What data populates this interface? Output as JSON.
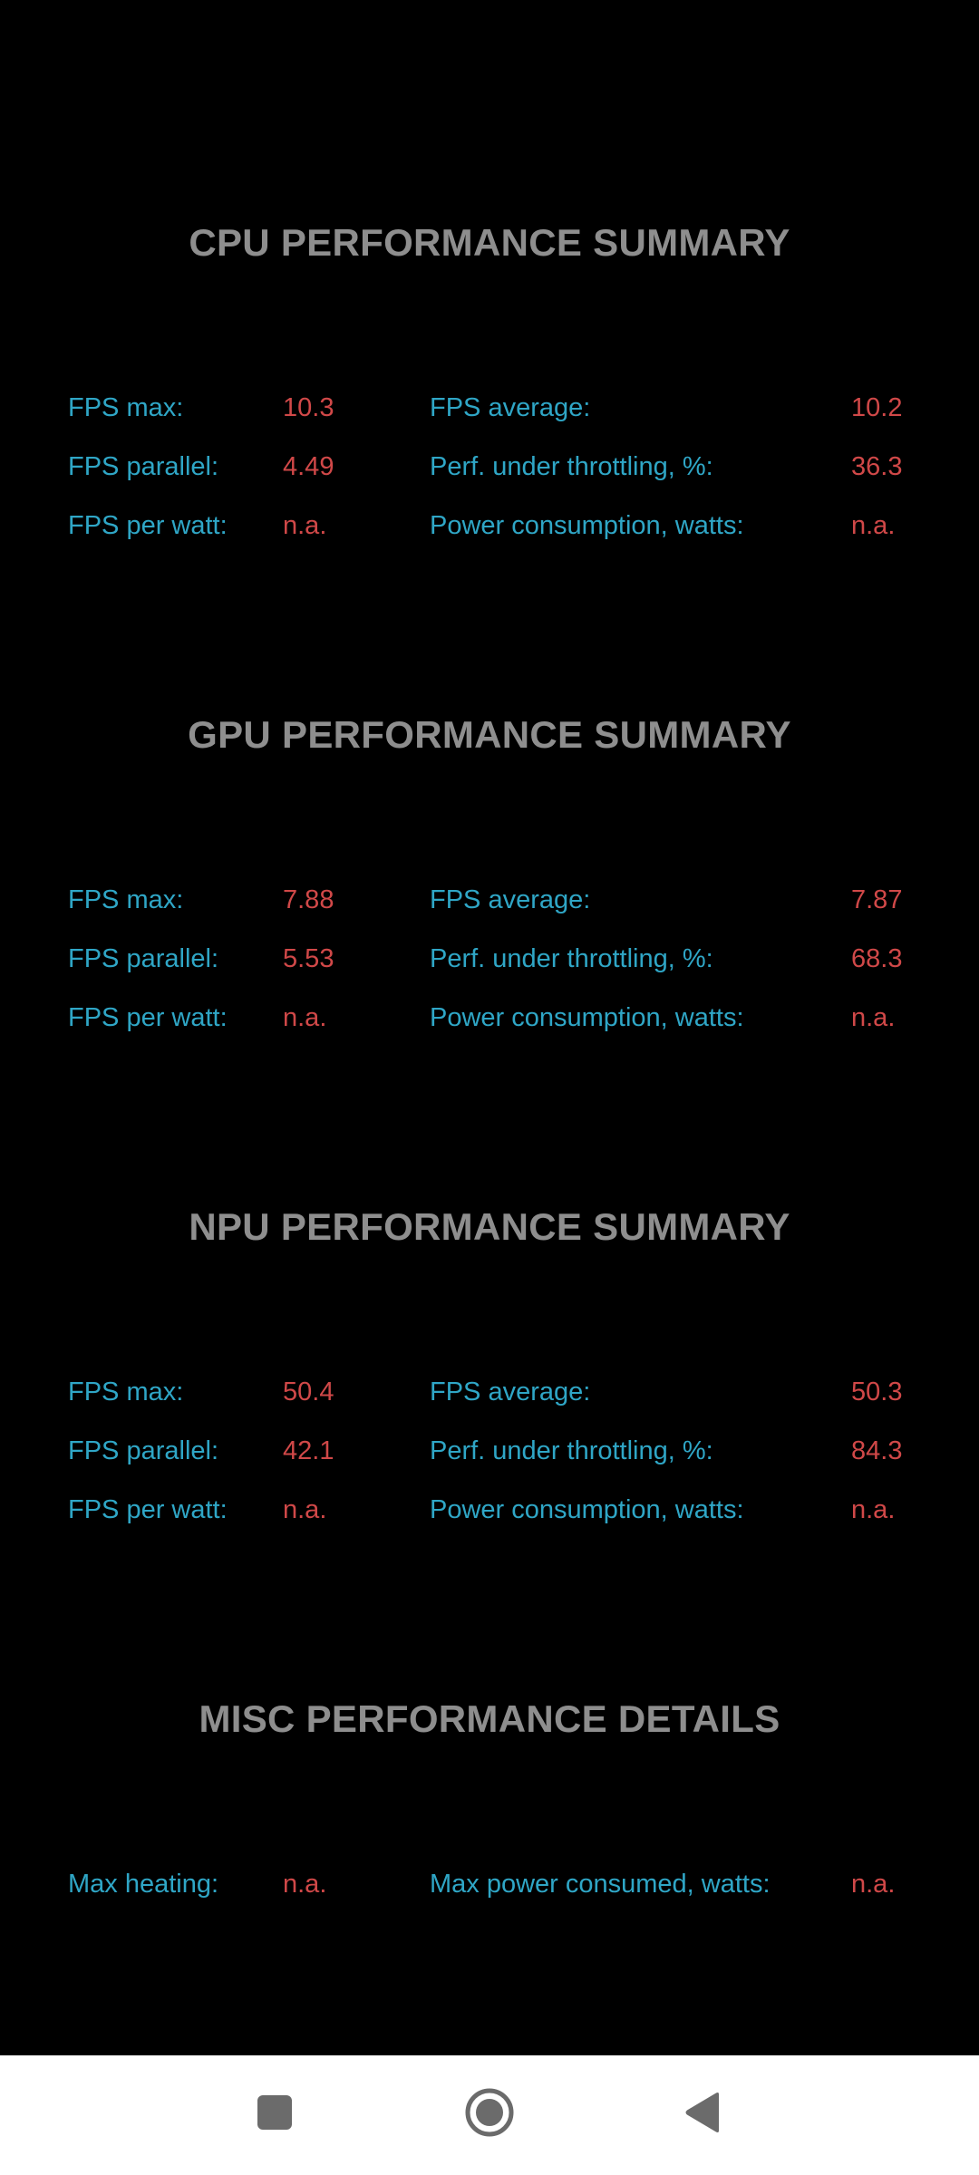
{
  "sections": [
    {
      "title": "CPU PERFORMANCE SUMMARY",
      "rows": [
        {
          "l1": "FPS max:",
          "v1": "10.3",
          "l2": "FPS average:",
          "v2": "10.2"
        },
        {
          "l1": "FPS parallel:",
          "v1": "4.49",
          "l2": "Perf. under throttling, %:",
          "v2": "36.3"
        },
        {
          "l1": "FPS per watt:",
          "v1": "n.a.",
          "l2": "Power consumption, watts:",
          "v2": "n.a."
        }
      ]
    },
    {
      "title": "GPU PERFORMANCE SUMMARY",
      "rows": [
        {
          "l1": "FPS max:",
          "v1": "7.88",
          "l2": "FPS average:",
          "v2": "7.87"
        },
        {
          "l1": "FPS parallel:",
          "v1": "5.53",
          "l2": "Perf. under throttling, %:",
          "v2": "68.3"
        },
        {
          "l1": "FPS per watt:",
          "v1": "n.a.",
          "l2": "Power consumption, watts:",
          "v2": "n.a."
        }
      ]
    },
    {
      "title": "NPU PERFORMANCE SUMMARY",
      "rows": [
        {
          "l1": "FPS max:",
          "v1": "50.4",
          "l2": "FPS average:",
          "v2": "50.3"
        },
        {
          "l1": "FPS parallel:",
          "v1": "42.1",
          "l2": "Perf. under throttling, %:",
          "v2": "84.3"
        },
        {
          "l1": "FPS per watt:",
          "v1": "n.a.",
          "l2": "Power consumption, watts:",
          "v2": "n.a."
        }
      ]
    },
    {
      "title": "MISC PERFORMANCE DETAILS",
      "rows": [
        {
          "l1": "Max heating:",
          "v1": "n.a.",
          "l2": "Max power consumed, watts:",
          "v2": "n.a."
        }
      ]
    }
  ],
  "navbar": {
    "recents_icon": "square-icon",
    "home_icon": "circle-home-icon",
    "back_icon": "triangle-back-icon"
  },
  "colors": {
    "background": "#000000",
    "title": "#8e8e8e",
    "label": "#2fa6c6",
    "value": "#d04848",
    "navbar": "#ffffff",
    "nav_icon": "#6b6b6b"
  }
}
